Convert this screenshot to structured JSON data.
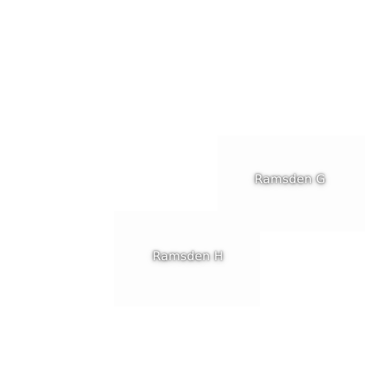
{
  "map": {
    "labels": [
      {
        "id": "ramsden-g",
        "text": "Ramsden G"
      },
      {
        "id": "ramsden-h",
        "text": "Ramsden H"
      }
    ]
  }
}
